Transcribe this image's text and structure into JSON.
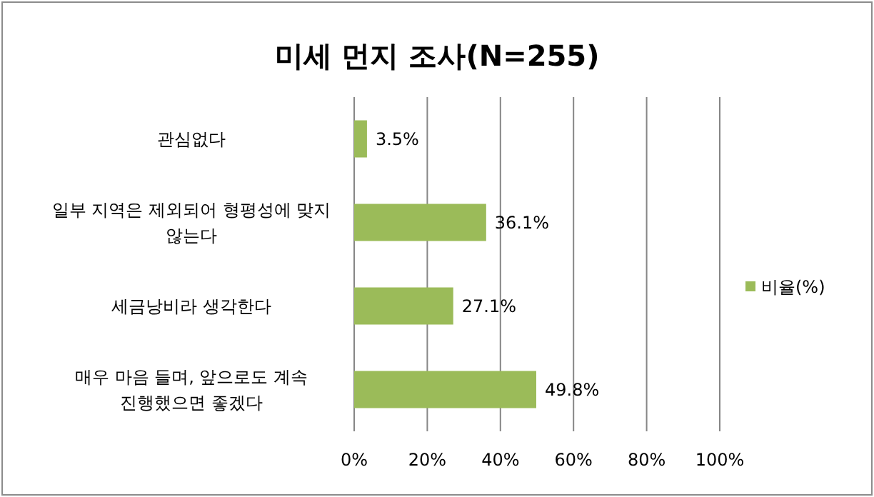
{
  "chart_data": {
    "type": "bar",
    "orientation": "horizontal",
    "title": "미세 먼지 조사(N=255)",
    "categories": [
      "관심없다",
      "일부 지역은 제외되어 형평성에 맞지 않는다",
      "세금낭비라 생각한다",
      "매우 마음 들며, 앞으로도 계속 진행했으면 좋겠다"
    ],
    "series": [
      {
        "name": "비율(%)",
        "color": "#9bbb59",
        "values": [
          3.5,
          36.1,
          27.1,
          49.8
        ],
        "value_labels": [
          "3.5%",
          "36.1%",
          "27.1%",
          "49.8%"
        ]
      }
    ],
    "xlim": [
      0,
      100
    ],
    "xticks": [
      {
        "value": 0,
        "label": "0%"
      },
      {
        "value": 20,
        "label": "20%"
      },
      {
        "value": 40,
        "label": "40%"
      },
      {
        "value": 60,
        "label": "60%"
      },
      {
        "value": 80,
        "label": "80%"
      },
      {
        "value": 100,
        "label": "100%"
      }
    ],
    "grid": "x",
    "legend": "right"
  }
}
